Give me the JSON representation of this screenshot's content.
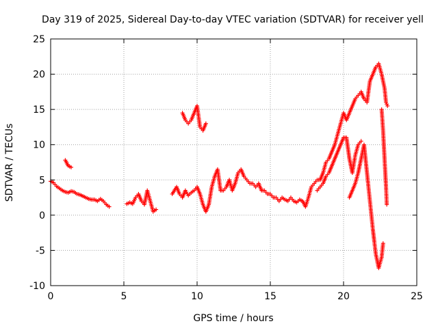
{
  "chart_data": {
    "type": "scatter",
    "title": "Day 319 of 2025, Sidereal Day-to-day VTEC variation (SDTVAR) for receiver yell",
    "xlabel": "GPS time / hours",
    "ylabel": "SDTVAR / TECUs",
    "xlim": [
      0,
      25
    ],
    "ylim": [
      -10,
      25
    ],
    "xticks": [
      "0",
      "5",
      "10",
      "15",
      "20",
      "25"
    ],
    "yticks": [
      "-10",
      "-5",
      "0",
      "5",
      "10",
      "15",
      "20",
      "25"
    ],
    "grid": true,
    "marker": "+",
    "color": "#ff0000",
    "series": [
      {
        "name": "SDTVAR",
        "points": [
          [
            0.0,
            4.8
          ],
          [
            0.2,
            4.6
          ],
          [
            0.4,
            4.1
          ],
          [
            0.6,
            3.8
          ],
          [
            0.8,
            3.5
          ],
          [
            1.0,
            3.3
          ],
          [
            1.2,
            3.2
          ],
          [
            1.4,
            3.4
          ],
          [
            1.6,
            3.3
          ],
          [
            1.8,
            3.0
          ],
          [
            2.0,
            2.9
          ],
          [
            2.2,
            2.7
          ],
          [
            2.4,
            2.5
          ],
          [
            2.6,
            2.3
          ],
          [
            2.8,
            2.2
          ],
          [
            3.0,
            2.2
          ],
          [
            3.2,
            2.0
          ],
          [
            3.4,
            2.3
          ],
          [
            3.6,
            2.0
          ],
          [
            3.8,
            1.5
          ],
          [
            4.0,
            1.2
          ],
          [
            1.0,
            7.8
          ],
          [
            1.1,
            7.4
          ],
          [
            1.2,
            7.0
          ],
          [
            1.4,
            6.8
          ],
          [
            5.2,
            1.6
          ],
          [
            5.4,
            1.8
          ],
          [
            5.6,
            1.6
          ],
          [
            5.8,
            2.5
          ],
          [
            6.0,
            3.0
          ],
          [
            6.2,
            2.0
          ],
          [
            6.4,
            1.5
          ],
          [
            6.6,
            3.5
          ],
          [
            6.8,
            2.0
          ],
          [
            7.0,
            0.5
          ],
          [
            7.2,
            0.8
          ],
          [
            8.3,
            3.0
          ],
          [
            8.6,
            4.0
          ],
          [
            8.8,
            3.0
          ],
          [
            9.0,
            2.5
          ],
          [
            9.2,
            3.5
          ],
          [
            9.4,
            2.8
          ],
          [
            9.6,
            3.2
          ],
          [
            9.8,
            3.5
          ],
          [
            10.0,
            4.0
          ],
          [
            10.2,
            3.0
          ],
          [
            10.4,
            1.5
          ],
          [
            10.6,
            0.5
          ],
          [
            10.8,
            1.5
          ],
          [
            11.0,
            4.0
          ],
          [
            11.2,
            5.5
          ],
          [
            11.4,
            6.5
          ],
          [
            11.6,
            3.5
          ],
          [
            11.8,
            3.5
          ],
          [
            12.0,
            4.0
          ],
          [
            12.2,
            5.0
          ],
          [
            12.4,
            3.5
          ],
          [
            12.6,
            4.5
          ],
          [
            12.8,
            6.0
          ],
          [
            13.0,
            6.5
          ],
          [
            13.2,
            5.5
          ],
          [
            13.4,
            5.0
          ],
          [
            13.6,
            4.5
          ],
          [
            13.8,
            4.5
          ],
          [
            14.0,
            4.0
          ],
          [
            14.2,
            4.5
          ],
          [
            14.4,
            3.5
          ],
          [
            14.6,
            3.5
          ],
          [
            14.8,
            3.0
          ],
          [
            15.0,
            3.0
          ],
          [
            15.2,
            2.5
          ],
          [
            15.4,
            2.5
          ],
          [
            15.6,
            2.0
          ],
          [
            15.8,
            2.5
          ],
          [
            16.0,
            2.2
          ],
          [
            16.2,
            2.0
          ],
          [
            16.4,
            2.5
          ],
          [
            16.6,
            2.0
          ],
          [
            16.8,
            1.8
          ],
          [
            17.0,
            2.2
          ],
          [
            17.2,
            2.0
          ],
          [
            17.4,
            1.2
          ],
          [
            17.6,
            2.5
          ],
          [
            17.8,
            4.0
          ],
          [
            18.0,
            4.5
          ],
          [
            18.2,
            5.0
          ],
          [
            18.4,
            5.0
          ],
          [
            18.6,
            6.0
          ],
          [
            18.8,
            7.5
          ],
          [
            19.0,
            8.0
          ],
          [
            19.2,
            9.0
          ],
          [
            19.4,
            10.0
          ],
          [
            19.6,
            11.5
          ],
          [
            19.8,
            13.0
          ],
          [
            20.0,
            14.5
          ],
          [
            20.2,
            13.5
          ],
          [
            20.4,
            14.5
          ],
          [
            20.6,
            15.5
          ],
          [
            20.8,
            16.5
          ],
          [
            21.0,
            17.0
          ],
          [
            21.2,
            17.5
          ],
          [
            21.4,
            16.5
          ],
          [
            21.6,
            16.0
          ],
          [
            21.8,
            19.0
          ],
          [
            22.0,
            20.0
          ],
          [
            22.2,
            21.0
          ],
          [
            22.4,
            21.5
          ],
          [
            22.6,
            20.0
          ],
          [
            22.8,
            18.0
          ],
          [
            22.9,
            16.0
          ],
          [
            23.0,
            15.5
          ],
          [
            18.2,
            3.5
          ],
          [
            18.4,
            4.0
          ],
          [
            18.6,
            4.5
          ],
          [
            18.8,
            5.5
          ],
          [
            19.0,
            6.0
          ],
          [
            19.2,
            7.0
          ],
          [
            19.4,
            8.0
          ],
          [
            19.6,
            9.0
          ],
          [
            19.8,
            10.0
          ],
          [
            20.0,
            11.0
          ],
          [
            20.2,
            11.0
          ],
          [
            20.4,
            8.0
          ],
          [
            20.6,
            6.0
          ],
          [
            20.8,
            8.5
          ],
          [
            21.0,
            10.0
          ],
          [
            21.2,
            10.5
          ],
          [
            20.4,
            2.5
          ],
          [
            20.6,
            3.5
          ],
          [
            20.8,
            4.5
          ],
          [
            21.0,
            6.0
          ],
          [
            21.4,
            10.0
          ],
          [
            21.6,
            6.0
          ],
          [
            21.8,
            2.0
          ],
          [
            22.0,
            -2.0
          ],
          [
            22.2,
            -5.5
          ],
          [
            22.4,
            -7.5
          ],
          [
            22.6,
            -6.0
          ],
          [
            22.7,
            -4.0
          ],
          [
            22.6,
            15.0
          ],
          [
            22.7,
            12.0
          ],
          [
            22.8,
            8.0
          ],
          [
            22.9,
            4.0
          ],
          [
            22.95,
            1.5
          ],
          [
            9.0,
            14.5
          ],
          [
            9.2,
            13.5
          ],
          [
            9.4,
            13.0
          ],
          [
            9.6,
            13.5
          ],
          [
            9.8,
            14.5
          ],
          [
            10.0,
            15.5
          ],
          [
            10.2,
            12.5
          ],
          [
            10.4,
            12.0
          ],
          [
            10.6,
            13.0
          ]
        ]
      }
    ]
  }
}
